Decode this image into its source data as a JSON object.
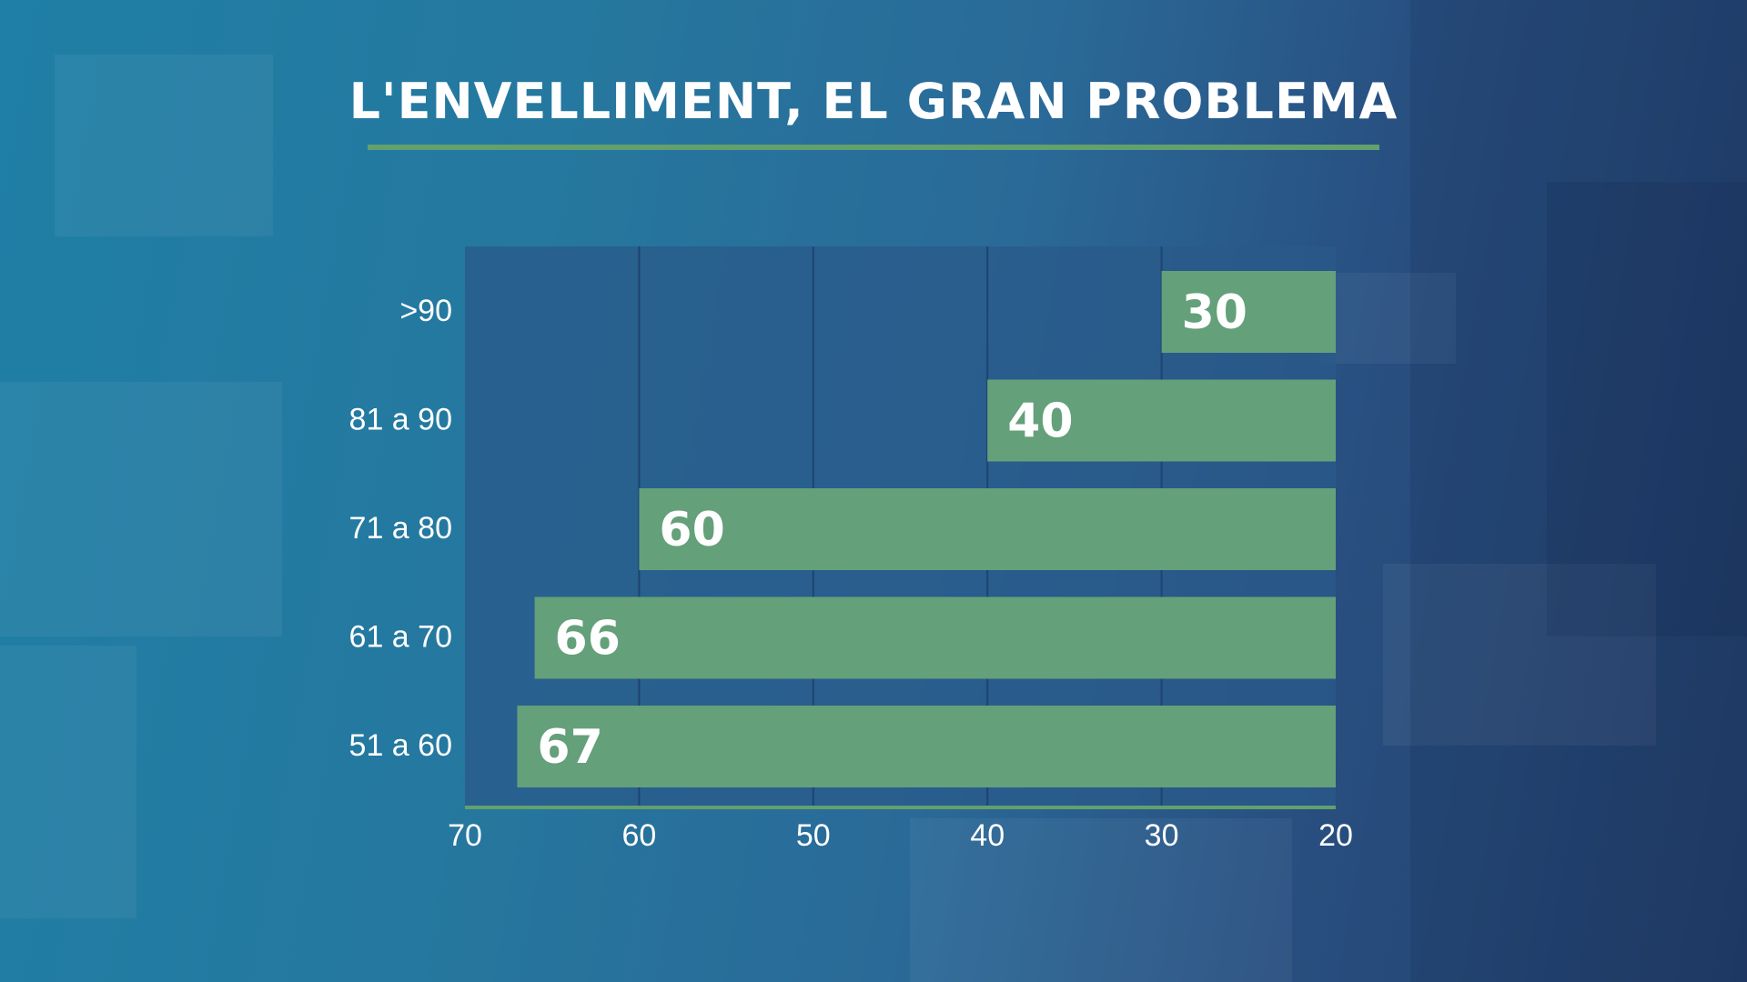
{
  "title": "L'ENVELLIMENT, EL GRAN PROBLEMA",
  "colors": {
    "bar": "#64a07a",
    "plot_bg": "#2a5a8a",
    "rule": "#62a06e",
    "text": "#ffffff"
  },
  "chart_data": {
    "type": "bar",
    "orientation": "horizontal",
    "title": "L'ENVELLIMENT, EL GRAN PROBLEMA",
    "categories": [
      ">90",
      "81 a 90",
      "71 a 80",
      "61 a 70",
      "51 a 60"
    ],
    "values": [
      30,
      40,
      60,
      66,
      67
    ],
    "xlim": [
      70,
      20
    ],
    "x_reversed": true,
    "xticks": [
      70,
      60,
      50,
      40,
      30,
      20
    ],
    "xtick_labels": [
      "70",
      "60",
      "50",
      "40",
      "30",
      "20"
    ],
    "xlabel": "",
    "ylabel": "",
    "grid": true,
    "data_labels": [
      "30",
      "40",
      "60",
      "66",
      "67"
    ]
  }
}
